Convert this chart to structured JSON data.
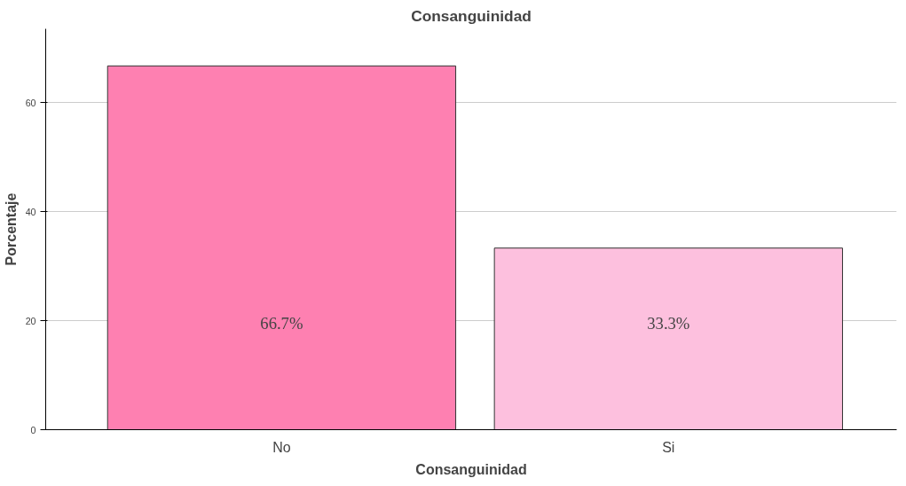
{
  "chart_data": {
    "type": "bar",
    "title": "Consanguinidad",
    "xlabel": "Consanguinidad",
    "ylabel": "Porcentaje",
    "categories": [
      "No",
      "Si"
    ],
    "values": [
      66.7,
      33.3
    ],
    "colors": [
      "#fe80b1",
      "#fdc0de"
    ],
    "value_labels": [
      "66.7%",
      "33.3%"
    ],
    "ylim": [
      0,
      73.5
    ],
    "yticks": [
      0,
      20,
      40,
      60
    ],
    "grid": "y"
  }
}
